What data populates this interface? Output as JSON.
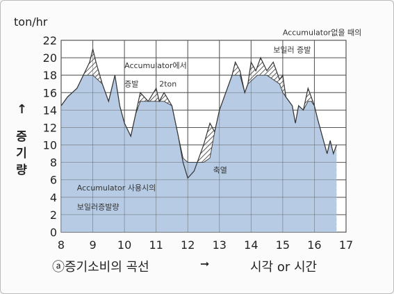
{
  "ylabel_unit": "ton/hr",
  "ylabel_vertical": [
    "증",
    "기",
    "량"
  ],
  "ylabel_arrow": "↑",
  "caption_left": "ⓐ증기소비의 곡선",
  "caption_arrow": "➞",
  "caption_right": "시각 or 시간",
  "colors": {
    "area": "#b7cce4",
    "grid": "#555555",
    "hatch": "#333333",
    "line": "#333333"
  },
  "chart_data": {
    "type": "area",
    "title": "",
    "xlabel": "시각 or 시간",
    "ylabel": "증기량",
    "unit": "ton/hr",
    "xlim": [
      8,
      17
    ],
    "ylim": [
      0,
      22
    ],
    "x_ticks": [
      8,
      9,
      10,
      11,
      12,
      13,
      14,
      15,
      16,
      17
    ],
    "y_ticks": [
      0,
      2,
      4,
      6,
      8,
      10,
      12,
      14,
      16,
      18,
      20,
      22
    ],
    "grid": true,
    "accumulator_level": 18,
    "series": [
      {
        "name": "Accumulator없을 때의 보일러 증발",
        "x": [
          8.0,
          8.2,
          8.5,
          8.7,
          8.9,
          9.0,
          9.1,
          9.3,
          9.5,
          9.7,
          9.85,
          10.0,
          10.2,
          10.35,
          10.5,
          10.75,
          11.0,
          11.1,
          11.25,
          11.5,
          11.7,
          11.85,
          12.0,
          12.2,
          12.5,
          12.7,
          12.85,
          13.0,
          13.2,
          13.4,
          13.5,
          13.65,
          13.8,
          13.9,
          14.0,
          14.15,
          14.3,
          14.5,
          14.7,
          14.9,
          15.0,
          15.1,
          15.3,
          15.4,
          15.5,
          15.65,
          15.8,
          15.9,
          16.0,
          16.1,
          16.25,
          16.4,
          16.5,
          16.6,
          16.7
        ],
        "y": [
          14.5,
          15.5,
          16.5,
          18.0,
          19.5,
          21.0,
          19.5,
          17.0,
          15.0,
          18.0,
          14.5,
          12.5,
          11.0,
          13.5,
          16.0,
          15.0,
          16.5,
          15.0,
          16.0,
          14.5,
          11.0,
          8.0,
          6.2,
          7.0,
          10.0,
          12.5,
          11.5,
          14.0,
          16.0,
          18.0,
          19.5,
          18.5,
          16.0,
          17.0,
          19.5,
          18.5,
          20.0,
          18.5,
          19.5,
          17.5,
          18.0,
          15.5,
          14.5,
          12.5,
          14.5,
          14.0,
          16.5,
          15.5,
          14.5,
          13.0,
          11.0,
          9.0,
          10.5,
          9.0,
          10.0
        ]
      },
      {
        "name": "Accumulator 사용시의 보일러증발량",
        "x": [
          8.0,
          8.2,
          8.5,
          8.7,
          9.0,
          9.3,
          9.5,
          9.7,
          9.85,
          10.0,
          10.2,
          10.35,
          10.5,
          10.75,
          11.0,
          11.1,
          11.25,
          11.5,
          11.7,
          11.85,
          12.0,
          12.2,
          12.5,
          12.7,
          12.85,
          13.0,
          13.2,
          13.4,
          13.65,
          13.8,
          13.9,
          14.2,
          14.5,
          14.9,
          15.0,
          15.1,
          15.3,
          15.4,
          15.5,
          15.65,
          15.8,
          15.9,
          16.0,
          16.1,
          16.25,
          16.4,
          16.5,
          16.6,
          16.7
        ],
        "y": [
          14.5,
          15.5,
          16.5,
          18.0,
          18.0,
          17.0,
          15.0,
          18.0,
          14.5,
          12.5,
          11.0,
          13.5,
          15.0,
          15.0,
          15.0,
          15.0,
          15.0,
          14.5,
          11.0,
          8.5,
          8.0,
          8.0,
          8.0,
          8.5,
          11.5,
          14.0,
          16.0,
          18.0,
          18.0,
          16.0,
          17.0,
          18.0,
          18.0,
          17.0,
          16.0,
          15.5,
          14.5,
          12.5,
          14.5,
          14.0,
          15.0,
          15.0,
          14.5,
          13.0,
          11.0,
          9.0,
          10.5,
          9.0,
          10.0
        ]
      }
    ],
    "annotations": [
      {
        "text": "Accumulator없을 때의",
        "x": 15.0,
        "y": 22.6
      },
      {
        "text": "보일러 증발",
        "x": 14.7,
        "y": 20.6
      },
      {
        "text": "Accumulator에서",
        "x": 10.0,
        "y": 18.8
      },
      {
        "text": "증발",
        "x": 10.0,
        "y": 16.7
      },
      {
        "text": "2ton",
        "x": 11.1,
        "y": 16.7
      },
      {
        "text": "축열",
        "x": 12.8,
        "y": 6.8
      },
      {
        "text": "Accumulator 사용시의",
        "x": 8.5,
        "y": 4.8
      },
      {
        "text": "보일러증발량",
        "x": 8.5,
        "y": 2.6
      }
    ]
  }
}
